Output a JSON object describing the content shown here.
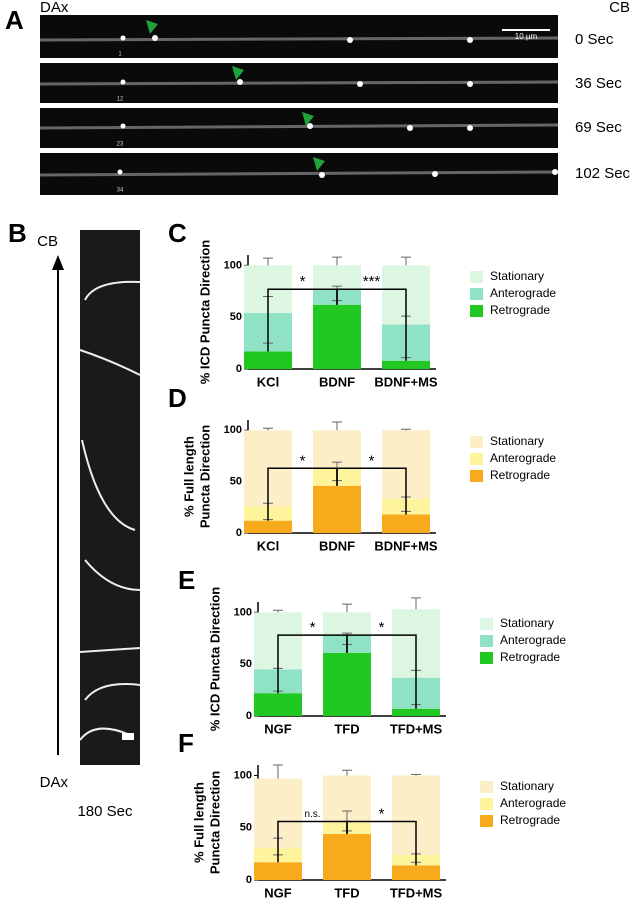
{
  "figure": {
    "panel_a": {
      "label": "A",
      "left": "DAx",
      "right": "CB",
      "scale_bar": "10 µm",
      "times": [
        "0 Sec",
        "36 Sec",
        "69 Sec",
        "102 Sec"
      ],
      "frames": [
        "1",
        "12",
        "23",
        "34"
      ]
    },
    "panel_b": {
      "label": "B",
      "top": "CB",
      "bottom": "DAx",
      "duration": "180 Sec"
    }
  },
  "chart_data": [
    {
      "type": "stacked_bar",
      "panel": "C",
      "ylabel": [
        "% ICD Puncta Direction"
      ],
      "categories": [
        "KCl",
        "BDNF",
        "BDNF+MS"
      ],
      "ylim": [
        0,
        110
      ],
      "yticks": [
        0,
        50,
        100
      ],
      "series": [
        {
          "name": "Retrograde",
          "color": "#22c822",
          "values": [
            17,
            62,
            8
          ],
          "errors": [
            8,
            4,
            3
          ]
        },
        {
          "name": "Anterograde",
          "color": "#8fe3c4",
          "values": [
            37,
            15,
            35
          ],
          "errors": [
            16,
            3,
            8
          ]
        },
        {
          "name": "Stationary",
          "color": "#dcf6e2",
          "values": [
            46,
            23,
            57
          ],
          "errors": [
            7,
            8,
            8
          ]
        }
      ],
      "brackets": [
        {
          "label": "*",
          "between": [
            0,
            1
          ]
        },
        {
          "label": "***",
          "between": [
            1,
            2
          ]
        }
      ]
    },
    {
      "type": "stacked_bar",
      "panel": "D",
      "ylabel": [
        "% Full length",
        "Puncta Direction"
      ],
      "categories": [
        "KCl",
        "BDNF",
        "BDNF+MS"
      ],
      "ylim": [
        0,
        110
      ],
      "yticks": [
        0,
        50,
        100
      ],
      "series": [
        {
          "name": "Retrograde",
          "color": "#f7aa1c",
          "values": [
            12,
            46,
            18
          ],
          "errors": [
            1,
            5,
            3
          ]
        },
        {
          "name": "Anterograde",
          "color": "#fdf49c",
          "values": [
            14,
            17,
            15
          ],
          "errors": [
            3,
            6,
            2
          ]
        },
        {
          "name": "Stationary",
          "color": "#fcefc8",
          "values": [
            74,
            37,
            67
          ],
          "errors": [
            2,
            8,
            1
          ]
        }
      ],
      "brackets": [
        {
          "label": "*",
          "between": [
            0,
            1
          ]
        },
        {
          "label": "*",
          "between": [
            1,
            2
          ]
        }
      ]
    },
    {
      "type": "stacked_bar",
      "panel": "E",
      "ylabel": [
        "% ICD Puncta Direction"
      ],
      "categories": [
        "NGF",
        "TFD",
        "TFD+MS"
      ],
      "ylim": [
        0,
        110
      ],
      "yticks": [
        0,
        50,
        100
      ],
      "series": [
        {
          "name": "Retrograde",
          "color": "#22c822",
          "values": [
            22,
            61,
            7
          ],
          "errors": [
            2,
            8,
            4
          ]
        },
        {
          "name": "Anterograde",
          "color": "#8fe3c4",
          "values": [
            23,
            17,
            30
          ],
          "errors": [
            1,
            2,
            7
          ]
        },
        {
          "name": "Stationary",
          "color": "#dcf6e2",
          "values": [
            55,
            22,
            66
          ],
          "errors": [
            2,
            8,
            11
          ]
        }
      ],
      "brackets": [
        {
          "label": "*",
          "between": [
            0,
            1
          ]
        },
        {
          "label": "*",
          "between": [
            1,
            2
          ]
        }
      ]
    },
    {
      "type": "stacked_bar",
      "panel": "F",
      "ylabel": [
        "% Full length",
        "Puncta Direction"
      ],
      "categories": [
        "NGF",
        "TFD",
        "TFD+MS"
      ],
      "ylim": [
        0,
        110
      ],
      "yticks": [
        0,
        50,
        100
      ],
      "series": [
        {
          "name": "Retrograde",
          "color": "#f7aa1c",
          "values": [
            17,
            44,
            14
          ],
          "errors": [
            7,
            3,
            3
          ]
        },
        {
          "name": "Anterograde",
          "color": "#fdf49c",
          "values": [
            14,
            12,
            10
          ],
          "errors": [
            9,
            10,
            1
          ]
        },
        {
          "name": "Stationary",
          "color": "#fcefc8",
          "values": [
            66,
            44,
            76
          ],
          "errors": [
            13,
            5,
            1
          ]
        }
      ],
      "brackets": [
        {
          "label": "n.s.",
          "between": [
            0,
            1
          ]
        },
        {
          "label": "*",
          "between": [
            1,
            2
          ]
        }
      ]
    }
  ]
}
